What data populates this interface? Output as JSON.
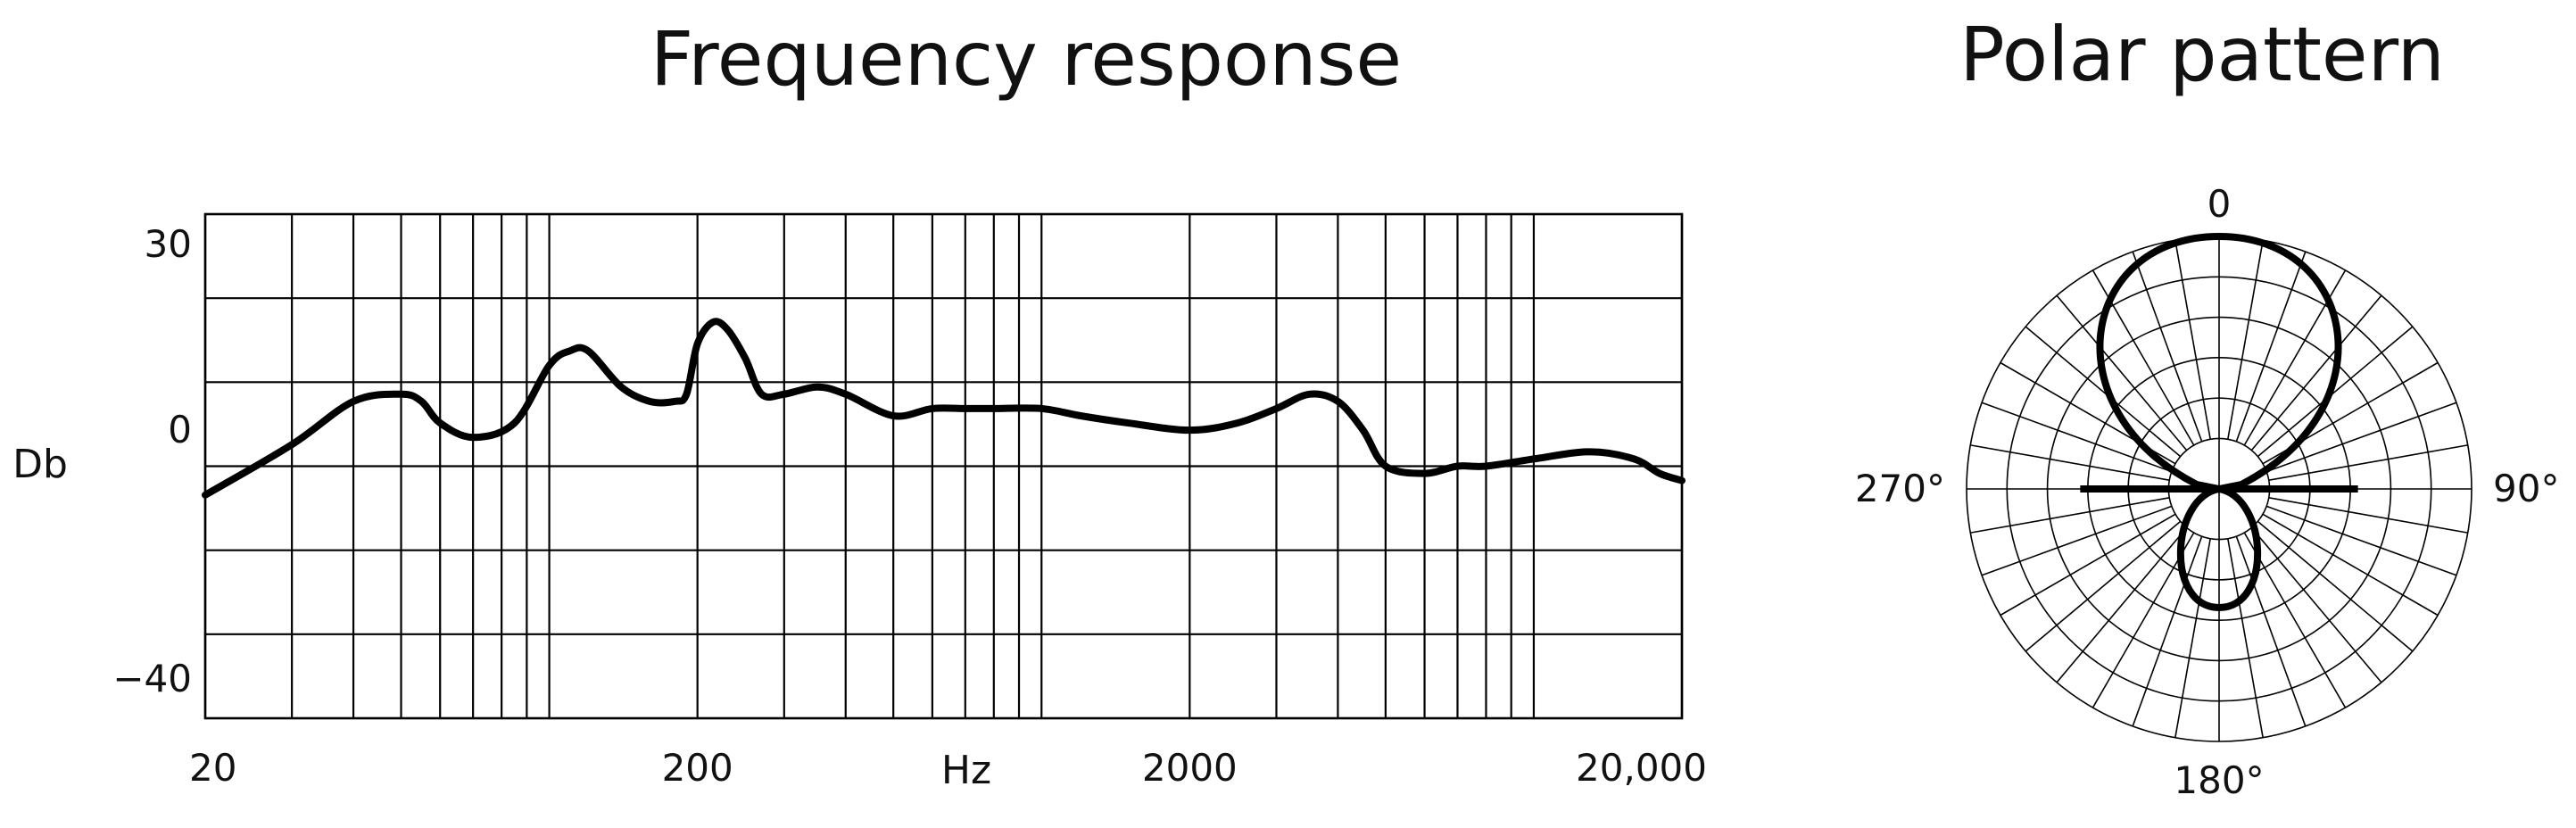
{
  "chart_data": [
    {
      "type": "line",
      "title": "Frequency response",
      "xlabel": "Hz",
      "ylabel": "Db",
      "x_scale": "log",
      "xlim": [
        20,
        20000
      ],
      "ylim": [
        -40,
        30
      ],
      "x_ticks": [
        {
          "value": 20,
          "label": "20"
        },
        {
          "value": 200,
          "label": "200"
        },
        {
          "value": 2000,
          "label": "2000"
        },
        {
          "value": 20000,
          "label": "20,000"
        }
      ],
      "y_ticks": [
        {
          "value": 30,
          "label": "30"
        },
        {
          "value": 0,
          "label": "0"
        },
        {
          "value": -40,
          "label": "−40"
        }
      ],
      "grid": true,
      "series": [
        {
          "x": [
            20,
            30,
            40,
            50,
            55,
            60,
            70,
            85,
            100,
            110,
            120,
            140,
            160,
            180,
            190,
            200,
            215,
            230,
            250,
            270,
            300,
            350,
            400,
            500,
            600,
            700,
            800,
            1000,
            1200,
            1500,
            2000,
            2500,
            3000,
            3500,
            4000,
            4500,
            5000,
            6000,
            7000,
            8000,
            10000,
            13000,
            16000,
            18000,
            20000
          ],
          "y": [
            -9,
            -2,
            4,
            5,
            4,
            1,
            -1,
            1,
            9,
            11,
            11,
            6,
            4,
            4,
            5,
            12,
            15,
            14,
            10,
            5,
            5,
            6,
            5,
            2,
            3,
            3,
            3,
            3,
            2,
            1,
            0,
            1,
            3,
            5,
            4,
            0,
            -5,
            -6,
            -5,
            -5,
            -4,
            -3,
            -4,
            -6,
            -7
          ]
        }
      ]
    },
    {
      "type": "polar",
      "title": "Polar pattern",
      "angle_labels": [
        {
          "angle": 0,
          "label": "0"
        },
        {
          "angle": 90,
          "label": "90°"
        },
        {
          "angle": 180,
          "label": "180°"
        },
        {
          "angle": 270,
          "label": "270°"
        }
      ],
      "series": [
        {
          "front_lobe_radius": [
            1,
            0.9,
            0.75,
            0.55,
            0.3,
            0.05,
            0
          ],
          "front_lobe_angles": [
            0,
            30,
            60,
            90,
            120,
            150,
            180
          ],
          "rear_lobe_radius": [
            0.47,
            0.35,
            0.1,
            0
          ],
          "rear_lobe_angles": [
            180,
            150,
            120,
            90
          ]
        }
      ]
    }
  ]
}
